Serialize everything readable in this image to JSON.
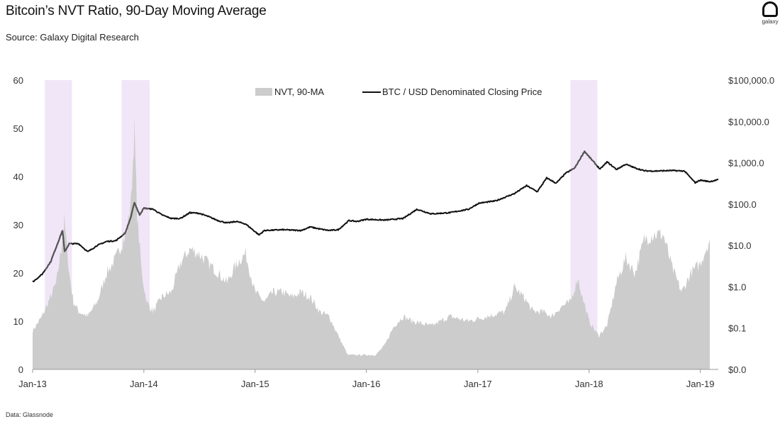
{
  "title": "Bitcoin’s NVT Ratio, 90-Day Moving Average",
  "subtitle": "Source: Galaxy Digital Research",
  "footnote": "Data: Glassnode",
  "logo": {
    "text": "galaxy",
    "icon": "galaxy-logo-icon"
  },
  "chart_data": {
    "type": "area",
    "x_tick_labels": [
      "Jan-13",
      "Jan-14",
      "Jan-15",
      "Jan-16",
      "Jan-17",
      "Jan-18",
      "Jan-19"
    ],
    "x_range": [
      "2013-01-01",
      "2019-03-01"
    ],
    "y_left": {
      "ticks": [
        "0",
        "10",
        "20",
        "30",
        "40",
        "50",
        "60"
      ],
      "range": [
        0,
        60
      ]
    },
    "y_right": {
      "ticks": [
        "$0.0",
        "$0.1",
        "$1.0",
        "$10.0",
        "$100.0",
        "$1,000.0",
        "$10,000.0",
        "$100,000.0"
      ],
      "scale": "log",
      "range_decades": [
        0,
        7
      ]
    },
    "legend": {
      "placement": "top-center",
      "entries": [
        "NVT, 90-MA",
        "BTC / USD Denominated Closing Price"
      ]
    },
    "colors": {
      "nvt": "#cccccc",
      "price": "#111111",
      "highlight": "#f0e6f7",
      "price_in_highlight": "#555555"
    },
    "highlight_periods": [
      {
        "start": "2013-02-10",
        "end": "2013-05-10"
      },
      {
        "start": "2013-10-20",
        "end": "2014-01-20"
      },
      {
        "start": "2017-11-01",
        "end": "2018-01-28"
      }
    ],
    "series": [
      {
        "name": "NVT, 90-MA",
        "axis": "left",
        "points": [
          [
            "2013-01-01",
            8
          ],
          [
            "2013-02-01",
            11
          ],
          [
            "2013-03-01",
            15
          ],
          [
            "2013-03-20",
            18
          ],
          [
            "2013-04-05",
            25
          ],
          [
            "2013-04-15",
            31
          ],
          [
            "2013-05-01",
            20
          ],
          [
            "2013-05-15",
            14
          ],
          [
            "2013-06-01",
            12
          ],
          [
            "2013-07-01",
            11
          ],
          [
            "2013-08-01",
            14
          ],
          [
            "2013-09-01",
            20
          ],
          [
            "2013-10-01",
            23
          ],
          [
            "2013-10-20",
            26
          ],
          [
            "2013-11-05",
            28
          ],
          [
            "2013-11-20",
            35
          ],
          [
            "2013-12-01",
            50
          ],
          [
            "2013-12-10",
            32
          ],
          [
            "2013-12-25",
            20
          ],
          [
            "2014-01-10",
            14
          ],
          [
            "2014-02-01",
            12
          ],
          [
            "2014-03-01",
            15
          ],
          [
            "2014-04-01",
            16
          ],
          [
            "2014-05-01",
            22
          ],
          [
            "2014-06-01",
            25
          ],
          [
            "2014-07-01",
            24
          ],
          [
            "2014-08-01",
            22
          ],
          [
            "2014-09-01",
            20
          ],
          [
            "2014-10-01",
            18
          ],
          [
            "2014-11-01",
            22
          ],
          [
            "2014-12-01",
            24
          ],
          [
            "2015-01-01",
            16
          ],
          [
            "2015-02-01",
            14
          ],
          [
            "2015-03-01",
            16
          ],
          [
            "2015-04-01",
            16
          ],
          [
            "2015-05-01",
            15
          ],
          [
            "2015-06-01",
            16
          ],
          [
            "2015-07-01",
            15
          ],
          [
            "2015-08-01",
            12
          ],
          [
            "2015-09-01",
            11
          ],
          [
            "2015-10-01",
            7
          ],
          [
            "2015-11-01",
            3
          ],
          [
            "2016-01-01",
            3
          ],
          [
            "2016-02-01",
            3
          ],
          [
            "2016-03-01",
            5
          ],
          [
            "2016-04-01",
            9
          ],
          [
            "2016-05-01",
            11
          ],
          [
            "2016-06-01",
            10
          ],
          [
            "2016-08-01",
            9
          ],
          [
            "2016-10-01",
            11
          ],
          [
            "2016-12-01",
            10
          ],
          [
            "2017-02-01",
            11
          ],
          [
            "2017-04-01",
            12
          ],
          [
            "2017-05-01",
            17
          ],
          [
            "2017-06-01",
            15
          ],
          [
            "2017-07-01",
            12
          ],
          [
            "2017-08-01",
            12
          ],
          [
            "2017-09-01",
            11
          ],
          [
            "2017-10-01",
            13
          ],
          [
            "2017-11-01",
            14
          ],
          [
            "2017-11-25",
            19
          ],
          [
            "2017-12-10",
            15
          ],
          [
            "2018-01-01",
            10
          ],
          [
            "2018-02-01",
            7
          ],
          [
            "2018-03-01",
            9
          ],
          [
            "2018-04-01",
            18
          ],
          [
            "2018-05-01",
            23
          ],
          [
            "2018-06-01",
            20
          ],
          [
            "2018-07-01",
            27
          ],
          [
            "2018-08-01",
            28
          ],
          [
            "2018-09-01",
            28
          ],
          [
            "2018-10-01",
            21
          ],
          [
            "2018-11-01",
            16
          ],
          [
            "2018-12-01",
            20
          ],
          [
            "2019-01-01",
            22
          ],
          [
            "2019-02-01",
            27
          ]
        ]
      },
      {
        "name": "BTC / USD Denominated Closing Price",
        "axis": "right",
        "points": [
          [
            "2013-01-01",
            13
          ],
          [
            "2013-02-01",
            20
          ],
          [
            "2013-03-01",
            40
          ],
          [
            "2013-04-09",
            230
          ],
          [
            "2013-04-16",
            70
          ],
          [
            "2013-05-01",
            110
          ],
          [
            "2013-06-01",
            110
          ],
          [
            "2013-07-01",
            70
          ],
          [
            "2013-08-01",
            100
          ],
          [
            "2013-09-01",
            125
          ],
          [
            "2013-10-01",
            130
          ],
          [
            "2013-11-01",
            200
          ],
          [
            "2013-11-20",
            500
          ],
          [
            "2013-12-01",
            1100
          ],
          [
            "2013-12-18",
            550
          ],
          [
            "2014-01-01",
            800
          ],
          [
            "2014-02-01",
            750
          ],
          [
            "2014-03-01",
            550
          ],
          [
            "2014-04-01",
            450
          ],
          [
            "2014-05-01",
            450
          ],
          [
            "2014-06-01",
            620
          ],
          [
            "2014-07-01",
            600
          ],
          [
            "2014-08-01",
            500
          ],
          [
            "2014-09-01",
            400
          ],
          [
            "2014-10-01",
            350
          ],
          [
            "2014-11-01",
            380
          ],
          [
            "2014-12-01",
            330
          ],
          [
            "2015-01-14",
            180
          ],
          [
            "2015-02-01",
            230
          ],
          [
            "2015-04-01",
            240
          ],
          [
            "2015-06-01",
            230
          ],
          [
            "2015-07-01",
            280
          ],
          [
            "2015-08-01",
            250
          ],
          [
            "2015-09-01",
            230
          ],
          [
            "2015-10-01",
            240
          ],
          [
            "2015-11-05",
            400
          ],
          [
            "2015-12-01",
            380
          ],
          [
            "2016-01-01",
            430
          ],
          [
            "2016-03-01",
            410
          ],
          [
            "2016-05-01",
            450
          ],
          [
            "2016-06-15",
            750
          ],
          [
            "2016-08-01",
            580
          ],
          [
            "2016-10-01",
            620
          ],
          [
            "2016-12-01",
            750
          ],
          [
            "2017-01-04",
            1050
          ],
          [
            "2017-03-01",
            1200
          ],
          [
            "2017-05-01",
            1800
          ],
          [
            "2017-06-10",
            2800
          ],
          [
            "2017-07-15",
            2000
          ],
          [
            "2017-08-15",
            4300
          ],
          [
            "2017-09-15",
            3200
          ],
          [
            "2017-10-15",
            5500
          ],
          [
            "2017-11-15",
            7500
          ],
          [
            "2017-12-17",
            19000
          ],
          [
            "2018-01-01",
            14000
          ],
          [
            "2018-02-06",
            7000
          ],
          [
            "2018-03-01",
            10500
          ],
          [
            "2018-04-01",
            6900
          ],
          [
            "2018-05-01",
            9200
          ],
          [
            "2018-06-01",
            7500
          ],
          [
            "2018-07-01",
            6400
          ],
          [
            "2018-08-01",
            6300
          ],
          [
            "2018-10-01",
            6500
          ],
          [
            "2018-11-10",
            6300
          ],
          [
            "2018-12-15",
            3300
          ],
          [
            "2019-01-01",
            3800
          ],
          [
            "2019-02-01",
            3500
          ],
          [
            "2019-03-01",
            3900
          ]
        ]
      }
    ]
  }
}
